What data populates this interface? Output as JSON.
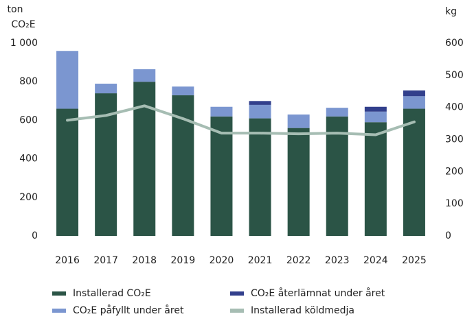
{
  "chart_data": {
    "type": "bar-line",
    "ylabel_lines": [
      "ton",
      "CO₂E"
    ],
    "y2label": "kg",
    "categories": [
      "2016",
      "2017",
      "2018",
      "2019",
      "2020",
      "2021",
      "2022",
      "2023",
      "2024",
      "2025"
    ],
    "series": [
      {
        "name": "Installerad CO₂E",
        "color": "#2b5446",
        "type": "bar",
        "values": [
          660,
          740,
          800,
          730,
          620,
          610,
          560,
          620,
          590,
          660
        ]
      },
      {
        "name": "CO₂E påfyllt under året",
        "color": "#7b96d0",
        "type": "bar",
        "values": [
          300,
          50,
          65,
          45,
          50,
          70,
          70,
          45,
          55,
          65
        ]
      },
      {
        "name": "CO₂E återlämnat under året",
        "color": "#323f8c",
        "type": "bar",
        "values": [
          0,
          0,
          0,
          0,
          0,
          20,
          0,
          0,
          25,
          30
        ]
      },
      {
        "name": "Installerad köldmedja",
        "color": "#a6bdb3",
        "type": "line",
        "axis": "y2",
        "values": [
          360,
          375,
          405,
          365,
          320,
          320,
          318,
          320,
          315,
          355
        ]
      }
    ],
    "ylim": [
      0,
      1000
    ],
    "yticks": [
      0,
      200,
      400,
      600,
      800,
      {
        "value": 1000,
        "label": "1 000"
      }
    ],
    "y2lim": [
      0,
      600
    ],
    "y2ticks": [
      0,
      100,
      200,
      300,
      400,
      500,
      600
    ],
    "grid": false
  }
}
